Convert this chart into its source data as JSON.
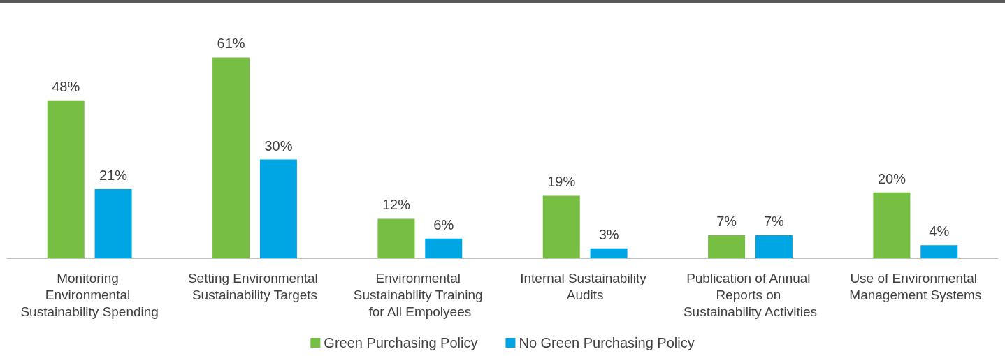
{
  "chart_data": {
    "type": "bar",
    "categories": [
      "Monitoring Environmental Sustainability Spending",
      "Setting Environmental Sustainability Targets",
      "Environmental Sustainability Training for All Empolyees",
      "Internal Sustainability Audits",
      "Publication of Annual Reports on Sustainability Activities",
      "Use of Environmental Management Systems"
    ],
    "series": [
      {
        "name": "Green Purchasing Policy",
        "color": "#77bf43",
        "values": [
          48,
          61,
          12,
          19,
          7,
          20
        ],
        "value_labels": [
          "48%",
          "61%",
          "12%",
          "19%",
          "7%",
          "20%"
        ]
      },
      {
        "name": "No Green Purchasing Policy",
        "color": "#00a5e3",
        "values": [
          21,
          30,
          6,
          3,
          7,
          4
        ],
        "value_labels": [
          "21%",
          "30%",
          "6%",
          "3%",
          "7%",
          "4%"
        ]
      }
    ],
    "legend": "bottom"
  }
}
